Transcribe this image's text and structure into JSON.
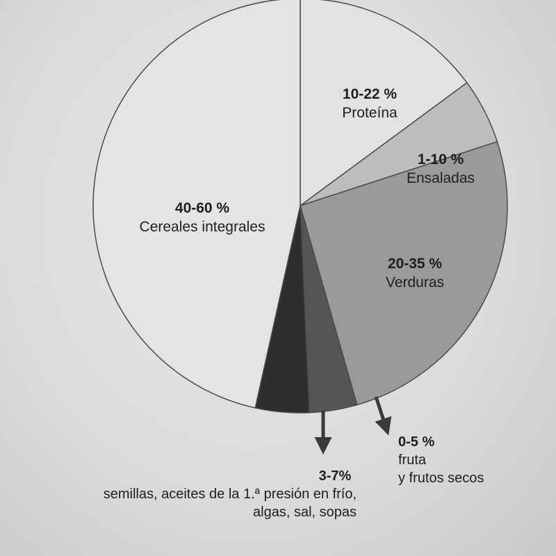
{
  "chart_data": {
    "type": "pie",
    "title": "",
    "slices": [
      {
        "key": "proteina",
        "range_label": "10-22 %",
        "name": "Proteína",
        "value": 16,
        "fill": "#e2e2e2"
      },
      {
        "key": "ensaladas",
        "range_label": "1-10 %",
        "name": "Ensaladas",
        "value": 5.5,
        "fill": "#bdbdbd"
      },
      {
        "key": "verduras",
        "range_label": "20-35 %",
        "name": "Verduras",
        "value": 27.5,
        "fill": "#9a9a9a"
      },
      {
        "key": "fruta",
        "range_label": "0-5 %",
        "name_lines": [
          "fruta",
          "y frutos secos"
        ],
        "value": 4,
        "fill": "#555555"
      },
      {
        "key": "semillas",
        "range_label": "3-7%",
        "name_lines": [
          "semillas, aceites de la 1.ª presión en frío,",
          "algas, sal, sopas"
        ],
        "value": 4.5,
        "fill": "#2e2e2e"
      },
      {
        "key": "cereales",
        "range_label": "40-60 %",
        "name": "Cereales integrales",
        "value": 50,
        "fill": "#e4e4e4"
      }
    ]
  }
}
